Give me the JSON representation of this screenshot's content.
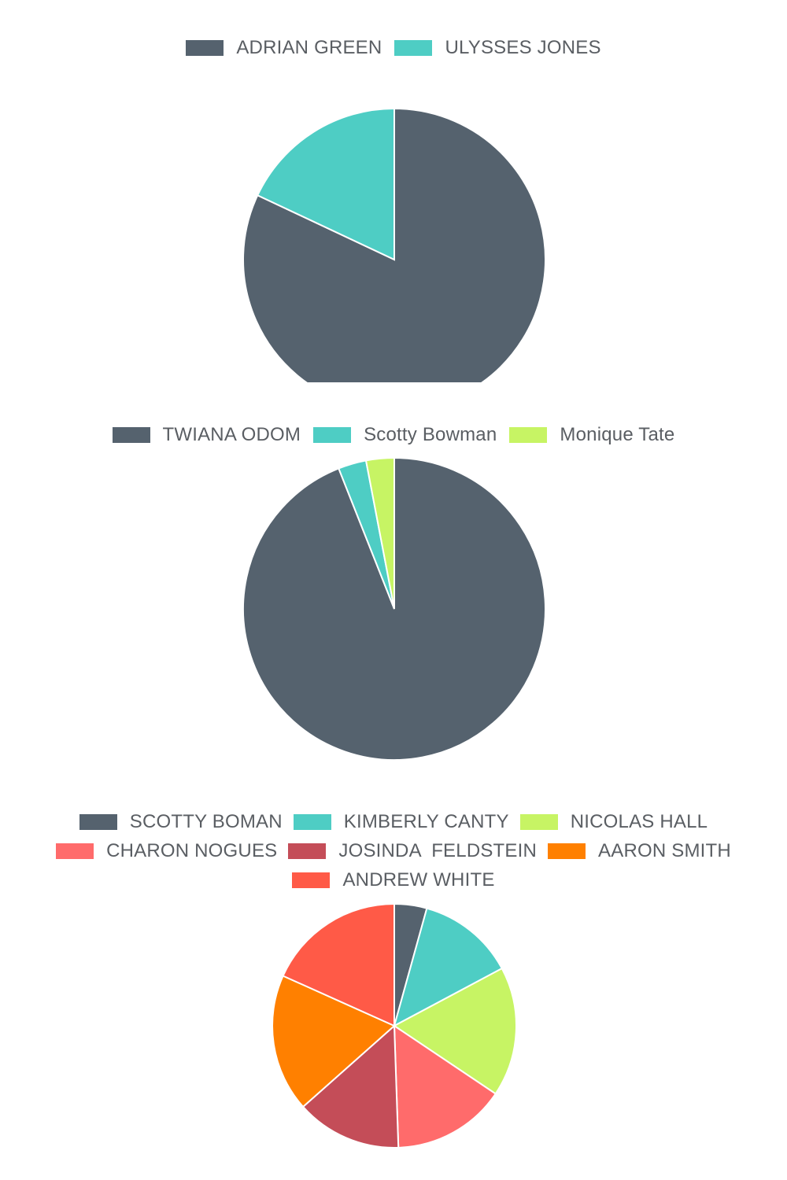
{
  "chart_data": [
    {
      "type": "pie",
      "title": "",
      "legend_position": "top",
      "categories": [
        "ADRIAN GREEN",
        "ULYSSES JONES"
      ],
      "values": [
        82,
        18
      ],
      "colors": [
        "#55626e",
        "#4ecdc4"
      ]
    },
    {
      "type": "pie",
      "title": "",
      "legend_position": "top",
      "categories": [
        "TWIANA ODOM",
        "Scotty Bowman",
        "Monique Tate"
      ],
      "values": [
        94,
        3,
        3
      ],
      "colors": [
        "#55626e",
        "#4ecdc4",
        "#c7f464"
      ]
    },
    {
      "type": "pie",
      "title": "",
      "legend_position": "top",
      "categories": [
        "SCOTTY BOMAN",
        "KIMBERLY CANTY",
        "NICOLAS HALL",
        "CHARON NOGUES",
        "JOSINDA  FELDSTEIN",
        "AARON SMITH",
        "ANDREW WHITE"
      ],
      "values": [
        4,
        12,
        16,
        14,
        13,
        17,
        17
      ],
      "colors": [
        "#55626e",
        "#4ecdc4",
        "#c7f464",
        "#ff6b6b",
        "#c44d58",
        "#ff8000",
        "#ff5a47"
      ]
    }
  ]
}
